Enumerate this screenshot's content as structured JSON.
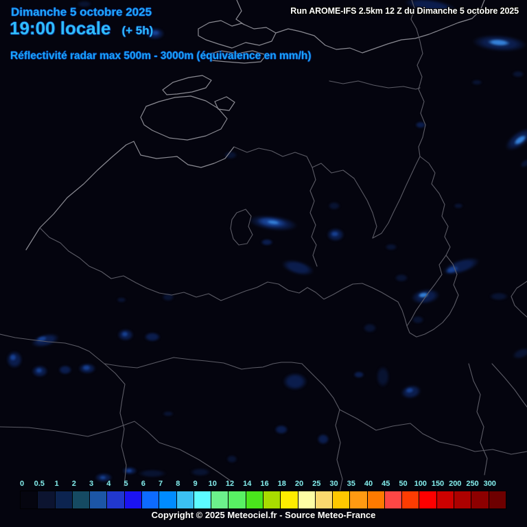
{
  "header": {
    "date_line": "Dimanche 5 octobre 2025",
    "time_line": "19:00 locale",
    "time_offset": "(+ 5h)",
    "subtitle": "Réflectivité radar max 500m - 3000m (équivalence en mm/h)",
    "run_info": "Run AROME-IFS 2.5km 12 Z du Dimanche 5 octobre 2025"
  },
  "footer": {
    "copyright": "Copyright © 2025 Meteociel.fr - Source Meteo-France"
  },
  "colors": {
    "background": "#04040e",
    "header_blue": "#2fbdff",
    "legend_label_cyan": "#86eaea",
    "border_gray": "#5c5c66",
    "coast_gray": "#8b8b93"
  },
  "legend": {
    "title": "équivalence en mm/h",
    "values": [
      "0",
      "0.5",
      "1",
      "2",
      "3",
      "4",
      "5",
      "6",
      "7",
      "8",
      "9",
      "10",
      "12",
      "14",
      "16",
      "18",
      "20",
      "25",
      "30",
      "35",
      "40",
      "45",
      "50",
      "100",
      "150",
      "200",
      "250",
      "300"
    ],
    "cell_colors": [
      "#05050f",
      "#0c1430",
      "#0c2450",
      "#154a62",
      "#1c56a6",
      "#2138ce",
      "#1b13f2",
      "#0d6bff",
      "#008cff",
      "#3bc1f2",
      "#5cfcff",
      "#6cf18b",
      "#58f163",
      "#4ae51c",
      "#a8dc00",
      "#ffec00",
      "#fdfda4",
      "#fbd96e",
      "#ffc800",
      "#ff9a12",
      "#ff7a00",
      "#fd4745",
      "#fe3c02",
      "#fe0000",
      "#ce0100",
      "#ad0100",
      "#8d0000",
      "#6e0000"
    ]
  },
  "map": {
    "echo_levels": {
      "1": "rgba(10,24,62,0.75)",
      "2": "rgba(12,32,84,0.9)",
      "3": "rgba(24,66,148,0.95)",
      "4": "rgba(52,128,216,1)"
    },
    "echoes": [
      [
        627,
        8,
        38,
        9,
        8,
        2
      ],
      [
        123,
        6,
        11,
        5,
        0,
        1
      ],
      [
        226,
        49,
        14,
        9,
        0,
        2
      ],
      [
        226,
        48,
        7,
        4,
        0,
        3
      ],
      [
        728,
        63,
        40,
        12,
        4,
        2
      ],
      [
        727,
        62,
        17,
        5,
        4,
        4
      ],
      [
        755,
        108,
        9,
        5,
        0,
        1
      ],
      [
        757,
        203,
        24,
        11,
        -35,
        2
      ],
      [
        758,
        204,
        11,
        5,
        -35,
        4
      ],
      [
        766,
        238,
        9,
        5,
        -30,
        1
      ],
      [
        695,
        120,
        8,
        4,
        0,
        1
      ],
      [
        613,
        182,
        8,
        5,
        0,
        2
      ],
      [
        668,
        300,
        7,
        4,
        0,
        1
      ],
      [
        336,
        226,
        10,
        6,
        0,
        1
      ],
      [
        398,
        325,
        36,
        11,
        7,
        2
      ],
      [
        396,
        324,
        22,
        7,
        7,
        3
      ],
      [
        398,
        324,
        10,
        3,
        7,
        4
      ],
      [
        389,
        353,
        9,
        5,
        0,
        2
      ],
      [
        489,
        342,
        13,
        10,
        0,
        2
      ],
      [
        488,
        341,
        6,
        4,
        0,
        3
      ],
      [
        487,
        300,
        9,
        6,
        0,
        1
      ],
      [
        434,
        390,
        24,
        10,
        15,
        2
      ],
      [
        570,
        360,
        9,
        5,
        0,
        1
      ],
      [
        585,
        405,
        10,
        6,
        0,
        1
      ],
      [
        672,
        388,
        28,
        10,
        -18,
        2
      ],
      [
        659,
        393,
        10,
        5,
        -18,
        3
      ],
      [
        620,
        432,
        21,
        11,
        -8,
        2
      ],
      [
        617,
        430,
        8,
        4,
        -8,
        4
      ],
      [
        727,
        432,
        14,
        6,
        0,
        1
      ],
      [
        760,
        515,
        14,
        7,
        -20,
        1
      ],
      [
        66,
        496,
        21,
        9,
        -14,
        2
      ],
      [
        61,
        494,
        8,
        4,
        -14,
        3
      ],
      [
        21,
        524,
        12,
        13,
        0,
        2
      ],
      [
        19,
        521,
        5,
        5,
        0,
        3
      ],
      [
        58,
        541,
        12,
        9,
        0,
        2
      ],
      [
        57,
        540,
        5,
        4,
        0,
        3
      ],
      [
        95,
        539,
        10,
        7,
        0,
        2
      ],
      [
        127,
        537,
        13,
        8,
        0,
        2
      ],
      [
        126,
        536,
        6,
        4,
        0,
        3
      ],
      [
        183,
        488,
        12,
        9,
        0,
        2
      ],
      [
        182,
        487,
        5,
        4,
        0,
        3
      ],
      [
        222,
        491,
        12,
        7,
        0,
        2
      ],
      [
        245,
        433,
        9,
        6,
        0,
        1
      ],
      [
        177,
        437,
        7,
        4,
        0,
        1
      ],
      [
        539,
        478,
        10,
        7,
        0,
        1
      ],
      [
        609,
        466,
        9,
        6,
        0,
        1
      ],
      [
        430,
        556,
        18,
        13,
        0,
        2
      ],
      [
        523,
        546,
        8,
        5,
        0,
        2
      ],
      [
        558,
        549,
        10,
        16,
        0,
        1
      ],
      [
        599,
        571,
        15,
        10,
        -10,
        2
      ],
      [
        597,
        569,
        6,
        4,
        -10,
        3
      ],
      [
        410,
        626,
        10,
        7,
        0,
        2
      ],
      [
        471,
        640,
        9,
        8,
        0,
        2
      ],
      [
        338,
        669,
        8,
        6,
        0,
        1
      ],
      [
        151,
        696,
        13,
        7,
        0,
        2
      ],
      [
        150,
        696,
        5,
        3,
        0,
        3
      ],
      [
        189,
        686,
        11,
        6,
        0,
        2
      ],
      [
        188,
        686,
        5,
        3,
        0,
        3
      ],
      [
        222,
        690,
        21,
        6,
        0,
        1
      ],
      [
        292,
        688,
        15,
        6,
        0,
        1
      ],
      [
        245,
        603,
        8,
        4,
        0,
        1
      ]
    ]
  }
}
